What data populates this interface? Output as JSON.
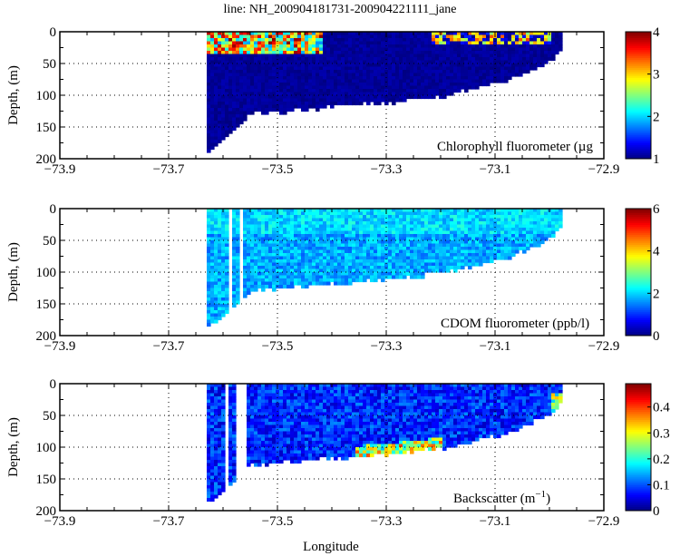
{
  "chart_data": {
    "title": "line: NH_200904181731-200904221111_jane",
    "xlabel": "Longitude",
    "x_ticks": [
      -73.9,
      -73.7,
      -73.5,
      -73.3,
      -73.1,
      -72.9
    ],
    "xlim": [
      -73.9,
      -72.9
    ],
    "grid": "dotted, at major ticks",
    "section_extent": {
      "lon_start": -73.63,
      "lon_end": -72.98,
      "bottom_profile": {
        "lon": [
          -73.63,
          -73.55,
          -73.5,
          -73.4,
          -73.3,
          -73.2,
          -73.1,
          -73.05,
          -73.0,
          -72.98
        ],
        "max_depth": [
          190,
          130,
          126,
          118,
          112,
          102,
          82,
          68,
          45,
          28
        ]
      }
    },
    "panels": [
      {
        "type": "heatmap",
        "ylabel": "Depth, (m)",
        "ylim": [
          200,
          0
        ],
        "y_ticks": [
          0,
          50,
          100,
          150,
          200
        ],
        "label": "Chlorophyll fluorometer (µg",
        "colorbar": {
          "range": [
            1,
            4
          ],
          "ticks": [
            1,
            2,
            3,
            4
          ],
          "colormap": "jet"
        },
        "features": "high values (2-4) in surface layer 0-35 m between -73.63 and -73.42; patchy 1.5-3.5 at 0-20 m between -73.22 and -73.0; ~1 elsewhere"
      },
      {
        "type": "heatmap",
        "ylabel": "Depth, (m)",
        "ylim": [
          200,
          0
        ],
        "y_ticks": [
          0,
          50,
          100,
          150,
          200
        ],
        "label": "CDOM fluorometer (ppb/l)",
        "colorbar": {
          "range": [
            0,
            6
          ],
          "ticks": [
            0,
            2,
            4,
            6
          ],
          "colormap": "jet"
        },
        "features": "mostly 1.2-2.5 throughout, slightly higher near surface"
      },
      {
        "type": "heatmap",
        "ylabel": "Depth, (m)",
        "ylim": [
          200,
          0
        ],
        "y_ticks": [
          0,
          50,
          100,
          150,
          200
        ],
        "label": "Backscatter (m",
        "label_superscript": "−1",
        "label_suffix": ")",
        "colorbar": {
          "range": [
            0,
            0.49
          ],
          "ticks": [
            0,
            0.1,
            0.2,
            0.3,
            0.4
          ],
          "colormap": "jet"
        },
        "features": "mostly 0.03-0.12; elevated 0.2-0.4 near bottom between -73.35 and -73.2; 0.2-0.35 near shoreward edge"
      }
    ]
  }
}
